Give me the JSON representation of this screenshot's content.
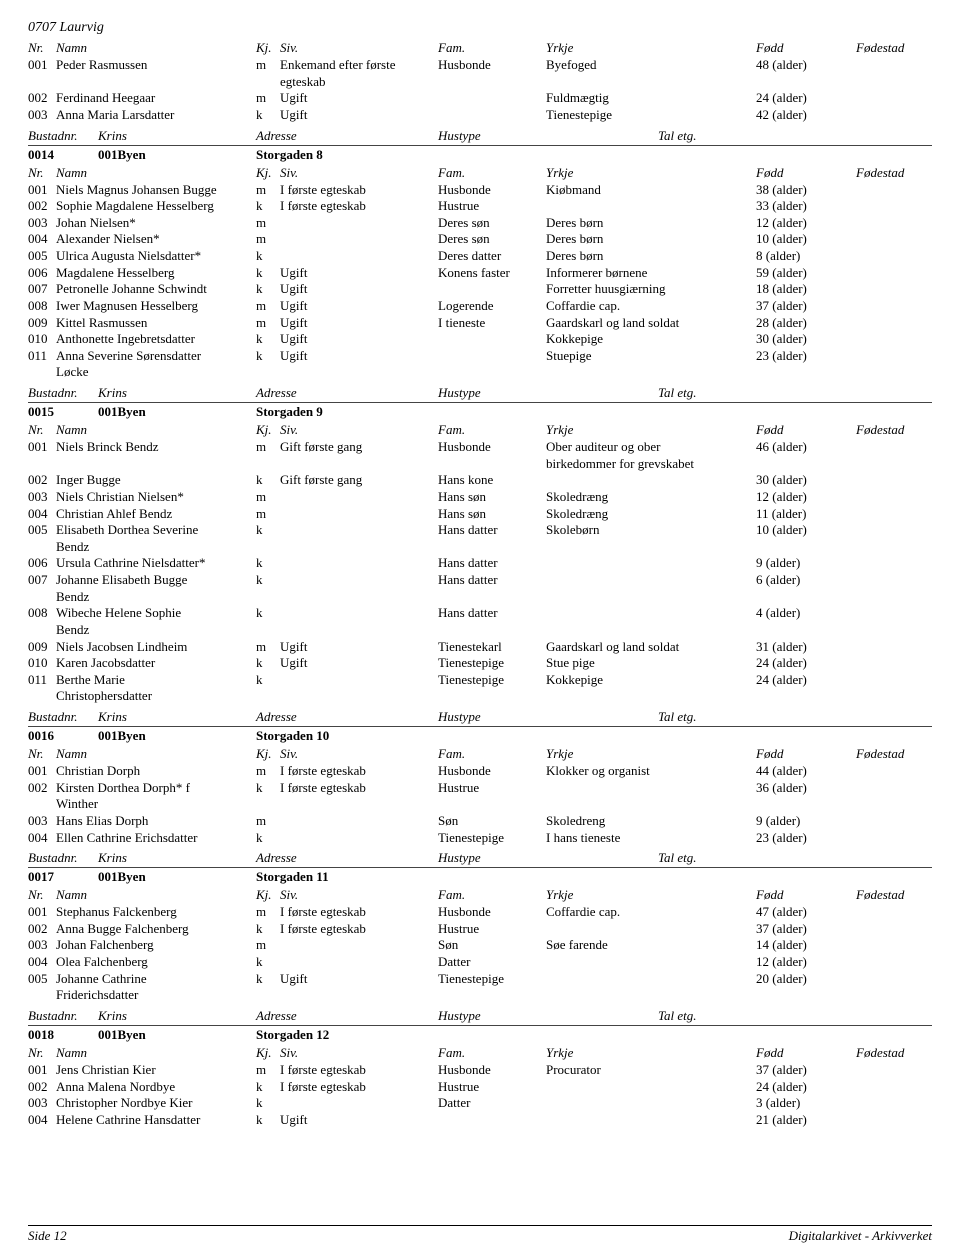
{
  "page_header": "0707 Laurvig",
  "footer": {
    "left": "Side 12",
    "right": "Digitalarkivet - Arkivverket"
  },
  "col_labels": {
    "nr": "Nr.",
    "namn": "Namn",
    "kj": "Kj.",
    "siv": "Siv.",
    "fam": "Fam.",
    "yrkje": "Yrkje",
    "fodd": "Fødd",
    "fodestad": "Fødestad"
  },
  "group_labels": {
    "bustadnr": "Bustadnr.",
    "krins": "Krins",
    "adresse": "Adresse",
    "hustype": "Hustype",
    "taletg": "Tal etg."
  },
  "top_people": [
    {
      "nr": "001",
      "namn": "Peder Rasmussen",
      "kj": "m",
      "siv": "Enkemand efter første",
      "siv2": "egteskab",
      "fam": "Husbonde",
      "yrkje": "Byefoged",
      "fodd": "48 (alder)"
    },
    {
      "nr": "002",
      "namn": "Ferdinand Heegaar",
      "kj": "m",
      "siv": "Ugift",
      "fam": "",
      "yrkje": "Fuldmægtig",
      "fodd": "24 (alder)"
    },
    {
      "nr": "003",
      "namn": "Anna Maria Larsdatter",
      "kj": "k",
      "siv": "Ugift",
      "fam": "",
      "yrkje": "Tienestepige",
      "fodd": "42 (alder)"
    }
  ],
  "groups": [
    {
      "bustadnr": "0014",
      "krins": "001Byen",
      "adresse": "Storgaden 8",
      "people": [
        {
          "nr": "001",
          "namn": "Niels Magnus Johansen Bugge",
          "kj": "m",
          "siv": "I første egteskab",
          "fam": "Husbonde",
          "yrkje": "Kiøbmand",
          "fodd": "38 (alder)"
        },
        {
          "nr": "002",
          "namn": "Sophie Magdalene Hesselberg",
          "kj": "k",
          "siv": "I første egteskab",
          "fam": "Hustrue",
          "yrkje": "",
          "fodd": "33 (alder)"
        },
        {
          "nr": "003",
          "namn": "Johan Nielsen*",
          "kj": "m",
          "siv": "",
          "fam": "Deres søn",
          "yrkje": "Deres børn",
          "fodd": "12 (alder)"
        },
        {
          "nr": "004",
          "namn": "Alexander Nielsen*",
          "kj": "m",
          "siv": "",
          "fam": "Deres søn",
          "yrkje": "Deres børn",
          "fodd": "10 (alder)"
        },
        {
          "nr": "005",
          "namn": "Ulrica Augusta Nielsdatter*",
          "kj": "k",
          "siv": "",
          "fam": "Deres datter",
          "yrkje": "Deres børn",
          "fodd": "8 (alder)"
        },
        {
          "nr": "006",
          "namn": "Magdalene Hesselberg",
          "kj": "k",
          "siv": "Ugift",
          "fam": "Konens faster",
          "yrkje": "Informerer børnene",
          "fodd": "59 (alder)"
        },
        {
          "nr": "007",
          "namn": "Petronelle Johanne Schwindt",
          "kj": "k",
          "siv": "Ugift",
          "fam": "",
          "yrkje": "Forretter huusgiærning",
          "fodd": "18 (alder)"
        },
        {
          "nr": "008",
          "namn": "Iwer Magnusen Hesselberg",
          "kj": "m",
          "siv": "Ugift",
          "fam": "Logerende",
          "yrkje": "Coffardie cap.",
          "fodd": "37 (alder)"
        },
        {
          "nr": "009",
          "namn": "Kittel Rasmussen",
          "kj": "m",
          "siv": "Ugift",
          "fam": "I tieneste",
          "yrkje": "Gaardskarl og land soldat",
          "fodd": "28 (alder)"
        },
        {
          "nr": "010",
          "namn": "Anthonette Ingebretsdatter",
          "kj": "k",
          "siv": "Ugift",
          "fam": "",
          "yrkje": "Kokkepige",
          "fodd": "30 (alder)"
        },
        {
          "nr": "011",
          "namn": "Anna Severine Sørensdatter",
          "namn2": "Løcke",
          "kj": "k",
          "siv": "Ugift",
          "fam": "",
          "yrkje": "Stuepige",
          "fodd": "23 (alder)"
        }
      ]
    },
    {
      "bustadnr": "0015",
      "krins": "001Byen",
      "adresse": "Storgaden 9",
      "people": [
        {
          "nr": "001",
          "namn": "Niels Brinck Bendz",
          "kj": "m",
          "siv": "Gift første gang",
          "fam": "Husbonde",
          "yrkje": "Ober auditeur og ober",
          "yrkje2": "birkedommer for grevskabet",
          "fodd": "46 (alder)"
        },
        {
          "nr": "002",
          "namn": "Inger Bugge",
          "kj": "k",
          "siv": "Gift første gang",
          "fam": "Hans kone",
          "yrkje": "",
          "fodd": "30 (alder)"
        },
        {
          "nr": "003",
          "namn": "Niels Christian Nielsen*",
          "kj": "m",
          "siv": "",
          "fam": "Hans søn",
          "yrkje": "Skoledræng",
          "fodd": "12 (alder)"
        },
        {
          "nr": "004",
          "namn": "Christian Ahlef Bendz",
          "kj": "m",
          "siv": "",
          "fam": "Hans søn",
          "yrkje": "Skoledræng",
          "fodd": "11 (alder)"
        },
        {
          "nr": "005",
          "namn": "Elisabeth Dorthea Severine",
          "namn2": "Bendz",
          "kj": "k",
          "siv": "",
          "fam": "Hans datter",
          "yrkje": "Skolebørn",
          "fodd": "10 (alder)"
        },
        {
          "nr": "006",
          "namn": "Ursula Cathrine Nielsdatter*",
          "kj": "k",
          "siv": "",
          "fam": "Hans datter",
          "yrkje": "",
          "fodd": "9 (alder)"
        },
        {
          "nr": "007",
          "namn": "Johanne Elisabeth Bugge",
          "namn2": "Bendz",
          "kj": "k",
          "siv": "",
          "fam": "Hans datter",
          "yrkje": "",
          "fodd": "6 (alder)"
        },
        {
          "nr": "008",
          "namn": "Wibeche Helene Sophie",
          "namn2": "Bendz",
          "kj": "k",
          "siv": "",
          "fam": "Hans datter",
          "yrkje": "",
          "fodd": "4 (alder)"
        },
        {
          "nr": "009",
          "namn": "Niels Jacobsen Lindheim",
          "kj": "m",
          "siv": "Ugift",
          "fam": "Tienestekarl",
          "yrkje": "Gaardskarl og land soldat",
          "fodd": "31 (alder)"
        },
        {
          "nr": "010",
          "namn": "Karen Jacobsdatter",
          "kj": "k",
          "siv": "Ugift",
          "fam": "Tienestepige",
          "yrkje": "Stue pige",
          "fodd": "24 (alder)"
        },
        {
          "nr": "011",
          "namn": "Berthe Marie",
          "namn2": "Christophersdatter",
          "kj": "k",
          "siv": "",
          "fam": "Tienestepige",
          "yrkje": "Kokkepige",
          "fodd": "24 (alder)"
        }
      ]
    },
    {
      "bustadnr": "0016",
      "krins": "001Byen",
      "adresse": "Storgaden 10",
      "people": [
        {
          "nr": "001",
          "namn": "Christian Dorph",
          "kj": "m",
          "siv": "I første egteskab",
          "fam": "Husbonde",
          "yrkje": "Klokker og organist",
          "fodd": "44 (alder)"
        },
        {
          "nr": "002",
          "namn": "Kirsten Dorthea Dorph* f",
          "namn2": "Winther",
          "kj": "k",
          "siv": "I første egteskab",
          "fam": "Hustrue",
          "yrkje": "",
          "fodd": "36 (alder)"
        },
        {
          "nr": "003",
          "namn": "Hans Elias Dorph",
          "kj": "m",
          "siv": "",
          "fam": "Søn",
          "yrkje": "Skoledreng",
          "fodd": "9 (alder)"
        },
        {
          "nr": "004",
          "namn": "Ellen Cathrine Erichsdatter",
          "kj": "k",
          "siv": "",
          "fam": "Tienestepige",
          "yrkje": "I hans tieneste",
          "fodd": "23 (alder)"
        }
      ]
    },
    {
      "bustadnr": "0017",
      "krins": "001Byen",
      "adresse": "Storgaden 11",
      "people": [
        {
          "nr": "001",
          "namn": "Stephanus Falckenberg",
          "kj": "m",
          "siv": "I første egteskab",
          "fam": "Husbonde",
          "yrkje": "Coffardie cap.",
          "fodd": "47 (alder)"
        },
        {
          "nr": "002",
          "namn": "Anna Bugge Falchenberg",
          "kj": "k",
          "siv": "I første egteskab",
          "fam": "Hustrue",
          "yrkje": "",
          "fodd": "37 (alder)"
        },
        {
          "nr": "003",
          "namn": "Johan Falchenberg",
          "kj": "m",
          "siv": "",
          "fam": "Søn",
          "yrkje": "Søe farende",
          "fodd": "14 (alder)"
        },
        {
          "nr": "004",
          "namn": "Olea Falchenberg",
          "kj": "k",
          "siv": "",
          "fam": "Datter",
          "yrkje": "",
          "fodd": "12 (alder)"
        },
        {
          "nr": "005",
          "namn": "Johanne Cathrine",
          "namn2": "Friderichsdatter",
          "kj": "k",
          "siv": "Ugift",
          "fam": "Tienestepige",
          "yrkje": "",
          "fodd": "20 (alder)"
        }
      ]
    },
    {
      "bustadnr": "0018",
      "krins": "001Byen",
      "adresse": "Storgaden 12",
      "people": [
        {
          "nr": "001",
          "namn": "Jens Christian Kier",
          "kj": "m",
          "siv": "I første egteskab",
          "fam": "Husbonde",
          "yrkje": "Procurator",
          "fodd": "37 (alder)"
        },
        {
          "nr": "002",
          "namn": "Anna Malena Nordbye",
          "kj": "k",
          "siv": "I første egteskab",
          "fam": "Hustrue",
          "yrkje": "",
          "fodd": "24 (alder)"
        },
        {
          "nr": "003",
          "namn": "Christopher Nordbye Kier",
          "kj": "k",
          "siv": "",
          "fam": "Datter",
          "yrkje": "",
          "fodd": "3 (alder)"
        },
        {
          "nr": "004",
          "namn": "Helene Cathrine Hansdatter",
          "kj": "k",
          "siv": "Ugift",
          "fam": "",
          "yrkje": "",
          "fodd": "21 (alder)"
        }
      ]
    }
  ]
}
